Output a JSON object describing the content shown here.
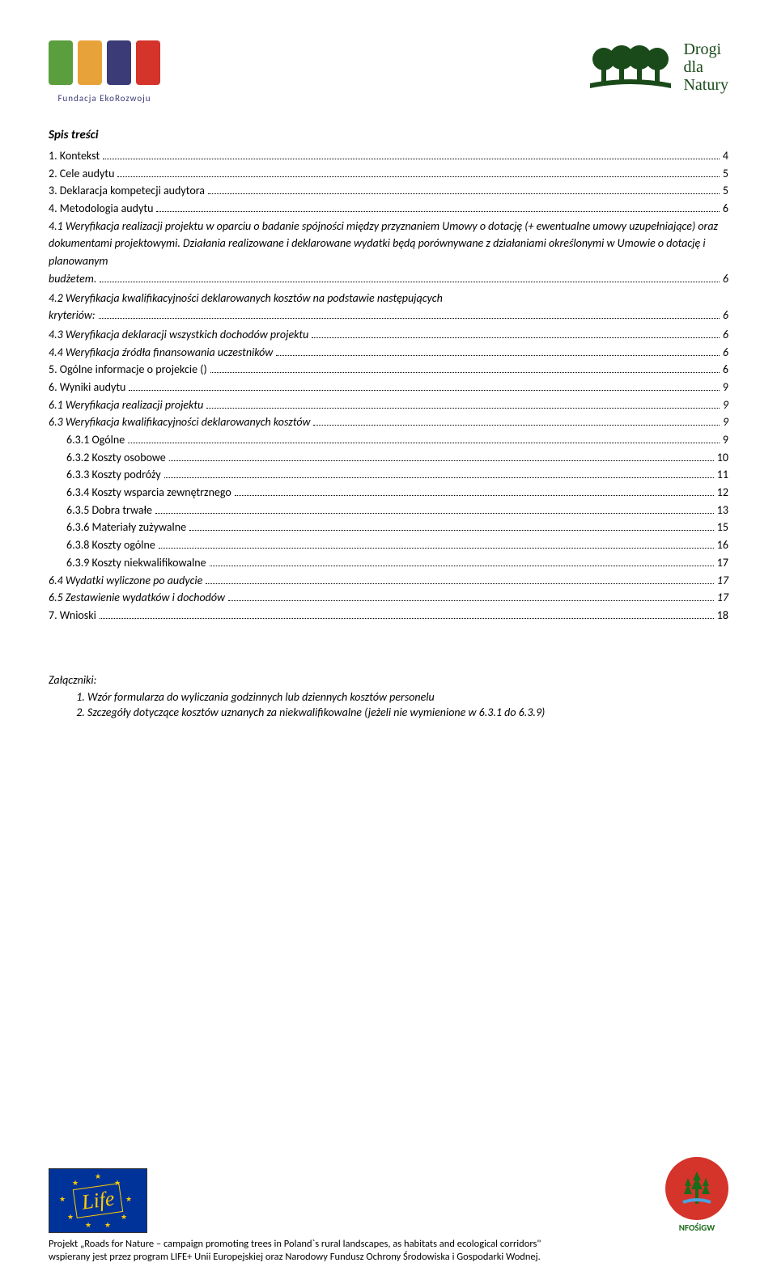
{
  "header": {
    "left_logo": {
      "colors": [
        "#5a9e3e",
        "#e8a23a",
        "#3b3b77",
        "#d4342a"
      ],
      "caption": "Fundacja EkoRozwoju"
    },
    "right_logo": {
      "line1": "Drogi",
      "line2": "dla",
      "line3": "Natury",
      "tree_color": "#1a4a1a"
    }
  },
  "toc": {
    "title": "Spis treści",
    "items": [
      {
        "label": "1.      Kontekst",
        "page": "4",
        "italic": false,
        "indent": 0
      },
      {
        "label": "2.      Cele audytu",
        "page": "5",
        "italic": false,
        "indent": 0
      },
      {
        "label": "3.      Deklaracja kompetecji audytora",
        "page": "5",
        "italic": false,
        "indent": 0
      },
      {
        "label": "4.      Metodologia audytu",
        "page": "6",
        "italic": false,
        "indent": 0
      },
      {
        "label": "4.1 Weryfikacja realizacji projektu w oparciu o badanie spójności między przyznaniem Umowy o dotację (+ ewentualne umowy uzupełniające) oraz dokumentami projektowymi. Działania realizowane i deklarowane wydatki będą porównywane z działaniami określonymi w Umowie o dotację i planowanym budżetem.",
        "page": "6",
        "italic": true,
        "indent": 0,
        "wrap": true
      },
      {
        "label": "4.2 Weryfikacja kwalifikacyjności deklarowanych kosztów na podstawie następujących kryteriów:",
        "page": "6",
        "italic": true,
        "indent": 0,
        "wrap": true
      },
      {
        "label": "4.3 Weryfikacja deklaracji wszystkich dochodów projektu",
        "page": "6",
        "italic": true,
        "indent": 0
      },
      {
        "label": "4.4 Weryfikacja źródła finansowania uczestników",
        "page": "6",
        "italic": true,
        "indent": 0
      },
      {
        "label": "5.      Ogólne informacje o projekcie ()",
        "page": "6",
        "italic": false,
        "indent": 0
      },
      {
        "label": "6.      Wyniki audytu",
        "page": "9",
        "italic": false,
        "indent": 0
      },
      {
        "label": "6.1 Weryfikacja realizacji projektu",
        "page": "9",
        "italic": true,
        "indent": 0
      },
      {
        "label": "6.3 Weryfikacja kwalifikacyjności deklarowanych kosztów",
        "page": "9",
        "italic": true,
        "indent": 0
      },
      {
        "label": "6.3.1 Ogólne",
        "page": "9",
        "italic": false,
        "indent": 1
      },
      {
        "label": "6.3.2 Koszty osobowe",
        "page": "10",
        "italic": false,
        "indent": 1
      },
      {
        "label": "6.3.3 Koszty podróży",
        "page": "11",
        "italic": false,
        "indent": 1
      },
      {
        "label": "6.3.4 Koszty wsparcia zewnętrznego",
        "page": "12",
        "italic": false,
        "indent": 1
      },
      {
        "label": "6.3.5 Dobra trwałe",
        "page": "13",
        "italic": false,
        "indent": 1
      },
      {
        "label": "6.3.6 Materiały zużywalne",
        "page": "15",
        "italic": false,
        "indent": 1
      },
      {
        "label": "6.3.8 Koszty ogólne",
        "page": "16",
        "italic": false,
        "indent": 1
      },
      {
        "label": "6.3.9 Koszty niekwalifikowalne",
        "page": "17",
        "italic": false,
        "indent": 1
      },
      {
        "label": "6.4 Wydatki wyliczone po audycie",
        "page": "17",
        "italic": true,
        "indent": 0
      },
      {
        "label": "6.5 Zestawienie wydatków i dochodów",
        "page": "17",
        "italic": true,
        "indent": 0
      },
      {
        "label": "7.      Wnioski",
        "page": "18",
        "italic": false,
        "indent": 0
      }
    ]
  },
  "attachments": {
    "title": "Załączniki:",
    "items": [
      "Wzór formularza do wyliczania godzinnych lub dziennych kosztów personelu",
      "Szczegóły dotyczące kosztów uznanych za niekwalifikowalne (jeżeli nie wymienione w 6.3.1 do 6.3.9)"
    ]
  },
  "footer": {
    "life_label": "Life",
    "nfosigw_label": "NFOŚiGW",
    "caption_line1": "Projekt „Roads for Nature – campaign promoting trees in Poland`s rural landscapes, as habitats and ecological corridors\"",
    "caption_line2": "wspierany jest  przez program LIFE+ Unii Europejskiej oraz Narodowy Fundusz Ochrony Środowiska i Gospodarki Wodnej."
  },
  "colors": {
    "text": "#000000",
    "background": "#ffffff",
    "eu_blue": "#003399",
    "eu_gold": "#ffcc00",
    "nfosigw_red": "#d4342a",
    "nfosigw_green": "#1a6b1a"
  }
}
